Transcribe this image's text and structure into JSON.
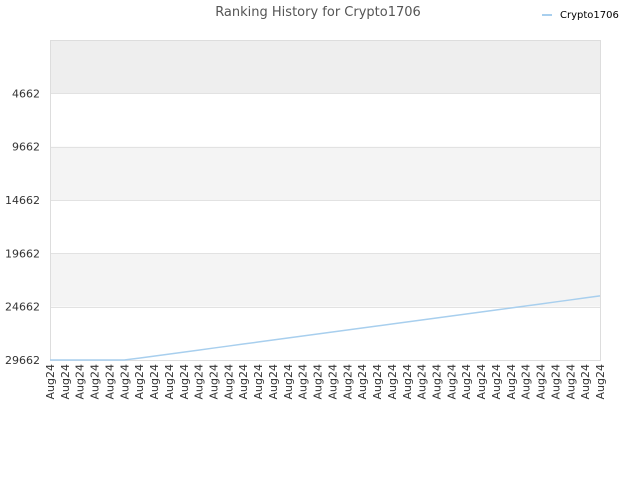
{
  "chart_data": {
    "type": "line",
    "title": "Ranking History for Crypto1706",
    "xlabel": "",
    "ylabel": "",
    "y_inverted": true,
    "ylim": [
      -338,
      29662
    ],
    "yticks": [
      4662,
      9662,
      14662,
      19662,
      24662,
      29662
    ],
    "x_tick_labels": [
      "Aug24",
      "Aug24",
      "Aug24",
      "Aug24",
      "Aug24",
      "Aug24",
      "Aug24",
      "Aug24",
      "Aug24",
      "Aug24",
      "Aug24",
      "Aug24",
      "Aug24",
      "Aug24",
      "Aug24",
      "Aug24",
      "Aug24",
      "Aug24",
      "Aug24",
      "Aug24",
      "Aug24",
      "Aug24",
      "Aug24",
      "Aug24",
      "Aug24",
      "Aug24",
      "Aug24",
      "Aug24",
      "Aug24",
      "Aug24",
      "Aug24",
      "Aug24",
      "Aug24",
      "Aug24",
      "Aug24",
      "Aug24",
      "Aug24",
      "Aug24"
    ],
    "series": [
      {
        "name": "Crypto1706",
        "color": "#a8cfee",
        "values": [
          29662,
          29662,
          29662,
          29662,
          29662,
          29662,
          29483,
          29295,
          29107,
          28919,
          28731,
          28543,
          28355,
          28167,
          27979,
          27791,
          27603,
          27415,
          27227,
          27039,
          26851,
          26663,
          26475,
          26287,
          26099,
          25911,
          25723,
          25535,
          25347,
          25159,
          24971,
          24783,
          24595,
          24407,
          24219,
          24031,
          23843,
          23655
        ]
      }
    ],
    "bands": [
      "#eeeeee",
      "#ffffff",
      "#f4f4f4",
      "#ffffff",
      "#f4f4f4",
      "#ffffff"
    ],
    "grid": true,
    "legend_position": "top-right"
  }
}
